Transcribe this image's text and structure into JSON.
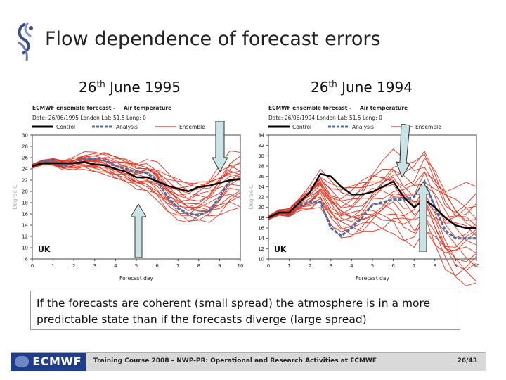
{
  "slide": {
    "title": "Flow dependence of forecast errors",
    "note": "If the forecasts are coherent (small spread) the atmosphere is in a more predictable state than if the forecasts diverge (large spread)"
  },
  "footer": {
    "logo_text": "ECMWF",
    "course": "Training Course 2008 – NWP-PR: Operational and Research Activities at ECMWF",
    "page": "26/43"
  },
  "colors": {
    "ensemble": "#e8321e",
    "control": "#000000",
    "analysis": "#4a6fa5",
    "arrow_fill": "#c7e3e4",
    "footer_logo_bg": "#1f3d8c"
  },
  "chart_data": [
    {
      "type": "line",
      "date_heading": {
        "day": "26",
        "suffix": "th",
        "rest": "June 1995"
      },
      "header_line1": "ECMWF ensemble forecast -",
      "header_param": "Air temperature",
      "header_line2": "Date: 26/06/1995 London Lat: 51.5 Long: 0",
      "legend": [
        "Control",
        "Analysis",
        "Ensemble"
      ],
      "region_label": "UK",
      "xlabel": "Forecast day",
      "ylabel": "Degree C",
      "xlim": [
        0,
        10
      ],
      "ylim": [
        8,
        30
      ],
      "xticks": [
        0,
        1,
        2,
        3,
        4,
        5,
        6,
        7,
        8,
        9,
        10
      ],
      "yticks": [
        8,
        10,
        12,
        14,
        16,
        18,
        20,
        22,
        24,
        26,
        28,
        30
      ],
      "x": [
        0,
        0.5,
        1,
        1.5,
        2,
        2.5,
        3,
        3.5,
        4,
        4.5,
        5,
        5.5,
        6,
        6.5,
        7,
        7.5,
        8,
        8.5,
        9,
        9.5,
        10
      ],
      "series": [
        {
          "name": "Control",
          "values": [
            24.5,
            25,
            25,
            25,
            25,
            25.2,
            24.8,
            24.6,
            24,
            23.5,
            22.5,
            22.5,
            21.8,
            21,
            20.5,
            20,
            20.8,
            21,
            21.5,
            22,
            22.2
          ]
        },
        {
          "name": "Analysis",
          "values": [
            24.5,
            25.3,
            25.5,
            24.5,
            25,
            25.8,
            25.8,
            25.5,
            24.5,
            24,
            23.5,
            23.3,
            22,
            19,
            17,
            16,
            15.8,
            16.5,
            19,
            22,
            22.2
          ]
        }
      ],
      "ensemble": {
        "name": "Ensemble",
        "spread": [
          0.3,
          0.4,
          0.6,
          0.8,
          1.0,
          1.2,
          1.4,
          1.6,
          1.8,
          2.0,
          2.2,
          2.4,
          2.6,
          2.8,
          3.0,
          3.2,
          3.4,
          3.6,
          3.8,
          4.0,
          4.0
        ],
        "member_offsets": [
          -1.0,
          -0.85,
          -0.7,
          -0.55,
          -0.4,
          -0.25,
          -0.1,
          0.05,
          0.2,
          0.35,
          0.5,
          0.65,
          0.8,
          0.95,
          -0.95,
          -0.6,
          -0.3,
          0.1,
          0.45,
          0.75
        ]
      }
    },
    {
      "type": "line",
      "date_heading": {
        "day": "26",
        "suffix": "th",
        "rest": "June 1994"
      },
      "header_line1": "ECMWF ensemble forecast -",
      "header_param": "Air temperature",
      "header_line2": "Date: 26/06/1994 London Lat: 51.5 Long: 0",
      "legend": [
        "Control",
        "Analysis",
        "Ensemble"
      ],
      "region_label": "UK",
      "xlabel": "Forecast day",
      "ylabel": "Degree C",
      "xlim": [
        0,
        10
      ],
      "ylim": [
        10,
        34
      ],
      "xticks": [
        0,
        1,
        2,
        3,
        4,
        5,
        6,
        7,
        8,
        9,
        10
      ],
      "yticks": [
        10,
        12,
        14,
        16,
        18,
        20,
        22,
        24,
        26,
        28,
        30,
        32,
        34
      ],
      "x": [
        0,
        0.5,
        1,
        1.5,
        2,
        2.5,
        3,
        3.5,
        4,
        4.5,
        5,
        5.5,
        6,
        6.5,
        7,
        7.5,
        8,
        8.5,
        9,
        9.5,
        10
      ],
      "series": [
        {
          "name": "Control",
          "values": [
            18,
            19,
            19,
            21,
            23,
            26.5,
            26,
            24,
            22.5,
            22.5,
            23,
            24,
            25,
            22,
            20,
            21.5,
            20,
            18,
            16.5,
            16,
            16
          ]
        },
        {
          "name": "Analysis",
          "values": [
            18,
            19,
            19,
            20.5,
            21,
            21,
            16,
            14.5,
            16,
            18,
            20.5,
            21,
            21.5,
            21.5,
            22,
            25,
            20,
            15.5,
            14,
            14,
            14
          ]
        }
      ],
      "ensemble": {
        "name": "Ensemble",
        "spread": [
          0.3,
          0.5,
          0.8,
          1.2,
          2.0,
          2.8,
          3.5,
          4.0,
          4.5,
          5.0,
          5.4,
          5.8,
          6.2,
          6.5,
          6.8,
          7.0,
          7.2,
          7.4,
          7.5,
          7.6,
          7.6
        ],
        "member_offsets": [
          -1.0,
          -0.85,
          -0.7,
          -0.55,
          -0.4,
          -0.25,
          -0.1,
          0.05,
          0.2,
          0.35,
          0.5,
          0.65,
          0.8,
          0.95,
          -0.95,
          -0.6,
          -0.3,
          0.1,
          0.45,
          0.75
        ]
      }
    }
  ]
}
